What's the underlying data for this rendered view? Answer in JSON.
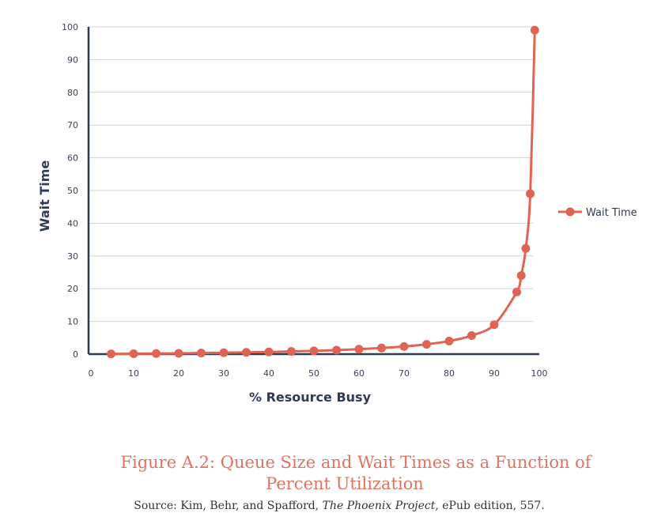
{
  "chart_data": {
    "type": "line",
    "xlabel": "% Resource Busy",
    "ylabel": "Wait Time",
    "xlim": [
      0,
      100
    ],
    "ylim": [
      0,
      100
    ],
    "xticks": [
      0,
      10,
      20,
      30,
      40,
      50,
      60,
      70,
      80,
      90,
      100
    ],
    "yticks": [
      0,
      10,
      20,
      30,
      40,
      50,
      60,
      70,
      80,
      90,
      100
    ],
    "grid": "horizontal",
    "legend": "right",
    "series": [
      {
        "name": "Wait Time",
        "color": "#e06453",
        "x": [
          5,
          10,
          15,
          20,
          25,
          30,
          35,
          40,
          45,
          50,
          55,
          60,
          65,
          70,
          75,
          80,
          85,
          90,
          95,
          96,
          97,
          98,
          99
        ],
        "y": [
          0.05,
          0.11,
          0.18,
          0.25,
          0.33,
          0.43,
          0.54,
          0.67,
          0.82,
          1,
          1.22,
          1.5,
          1.86,
          2.33,
          3,
          4,
          5.67,
          9,
          19,
          24,
          32.3,
          49,
          99
        ]
      }
    ]
  },
  "caption": {
    "line1": "Figure A.2: Queue Size and Wait Times as a Function of",
    "line2": "Percent Utilization"
  },
  "source": {
    "prefix": "Source: Kim, Behr, and Spafford, ",
    "book": "The Phoenix Project",
    "suffix": ", ePub edition, 557."
  }
}
